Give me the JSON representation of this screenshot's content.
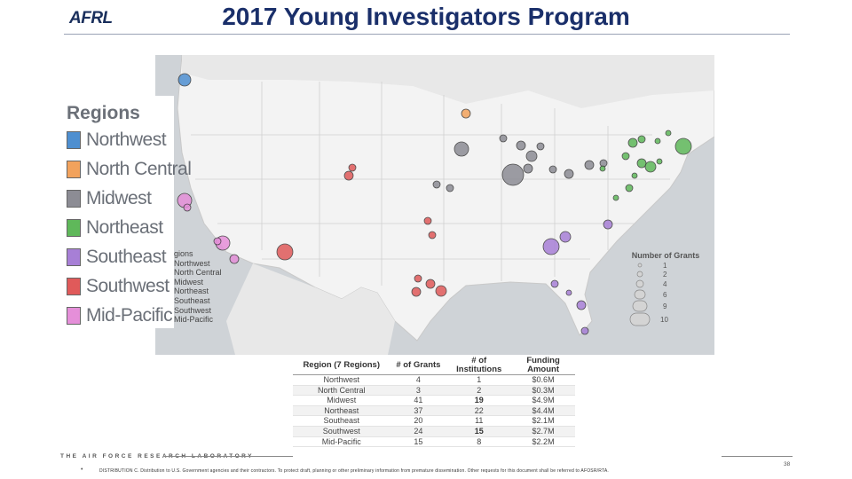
{
  "logo": "AFRL",
  "title": "2017 Young Investigators Program",
  "legend": {
    "title": "Regions",
    "items": [
      {
        "label": "Northwest",
        "color": "#4e8fd0"
      },
      {
        "label": "North Central",
        "color": "#f2a25c"
      },
      {
        "label": "Midwest",
        "color": "#8c8c94"
      },
      {
        "label": "Northeast",
        "color": "#5fb85a"
      },
      {
        "label": "Southeast",
        "color": "#a77fd6"
      },
      {
        "label": "Southwest",
        "color": "#e05a5a"
      },
      {
        "label": "Mid-Pacific",
        "color": "#e58fd9"
      }
    ]
  },
  "mini_legend": {
    "title": "gions",
    "items": [
      "Northwest",
      "North Central",
      "Midwest",
      "Northeast",
      "Southeast",
      "Southwest",
      "Mid-Pacific"
    ]
  },
  "size_legend": {
    "title": "Number of Grants",
    "values": [
      "1",
      "2",
      "4",
      "6",
      "9",
      "10"
    ]
  },
  "table": {
    "headers": [
      "Region (7 Regions)",
      "# of Grants",
      "# of Institutions",
      "Funding Amount"
    ],
    "rows": [
      [
        "Northwest",
        "4",
        "1",
        "$0.6M"
      ],
      [
        "North Central",
        "3",
        "2",
        "$0.3M"
      ],
      [
        "Midwest",
        "41",
        "19",
        "$4.9M"
      ],
      [
        "Northeast",
        "37",
        "22",
        "$4.4M"
      ],
      [
        "Southeast",
        "20",
        "11",
        "$2.1M"
      ],
      [
        "Southwest",
        "24",
        "15",
        "$2.7M"
      ],
      [
        "Mid-Pacific",
        "15",
        "8",
        "$2.2M"
      ]
    ]
  },
  "motto": "THE AIR FORCE RESEARCH LABORATORY",
  "bullet": "•",
  "distribution": "DISTRIBUTION C. Distribution to U.S. Government agencies and their contractors. To protect draft, planning or other preliminary information from premature dissemination. Other requests for this document shall be referred to AFOSR/RTA.",
  "page_number": "38"
}
